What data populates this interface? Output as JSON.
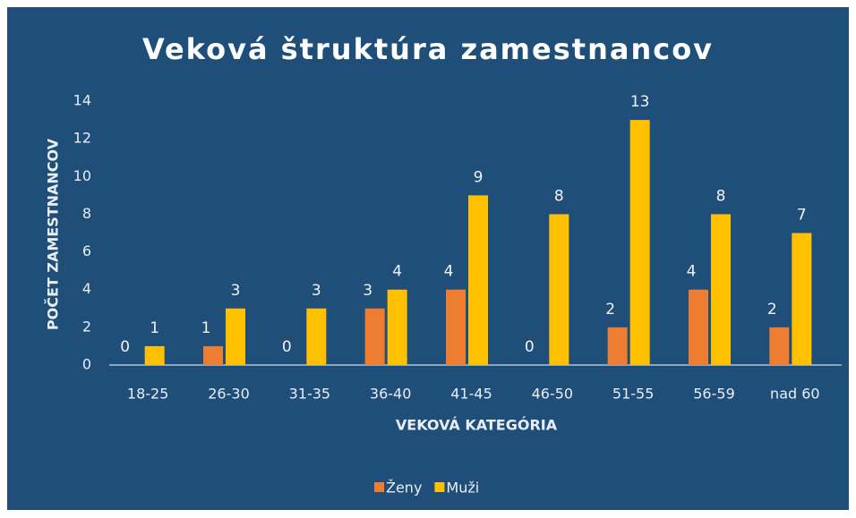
{
  "chart_data": {
    "type": "bar",
    "title": "Veková štruktúra zamestnancov",
    "x_label": "VEKOVÁ KATEGÓRIA",
    "y_label": "POČET ZAMESTNANCOV",
    "categories": [
      "18-25",
      "26-30",
      "31-35",
      "36-40",
      "41-45",
      "46-50",
      "51-55",
      "56-59",
      "nad 60"
    ],
    "series": [
      {
        "name": "Ženy",
        "color": "#ed7d31",
        "values": [
          0,
          1,
          0,
          3,
          4,
          0,
          2,
          4,
          2
        ]
      },
      {
        "name": "Muži",
        "color": "#ffc000",
        "values": [
          1,
          3,
          3,
          4,
          9,
          8,
          13,
          8,
          7
        ]
      }
    ],
    "ylim": [
      0,
      14
    ],
    "yticks": [
      0,
      2,
      4,
      6,
      8,
      10,
      12,
      14
    ],
    "grid": false,
    "legend": "bottom"
  }
}
